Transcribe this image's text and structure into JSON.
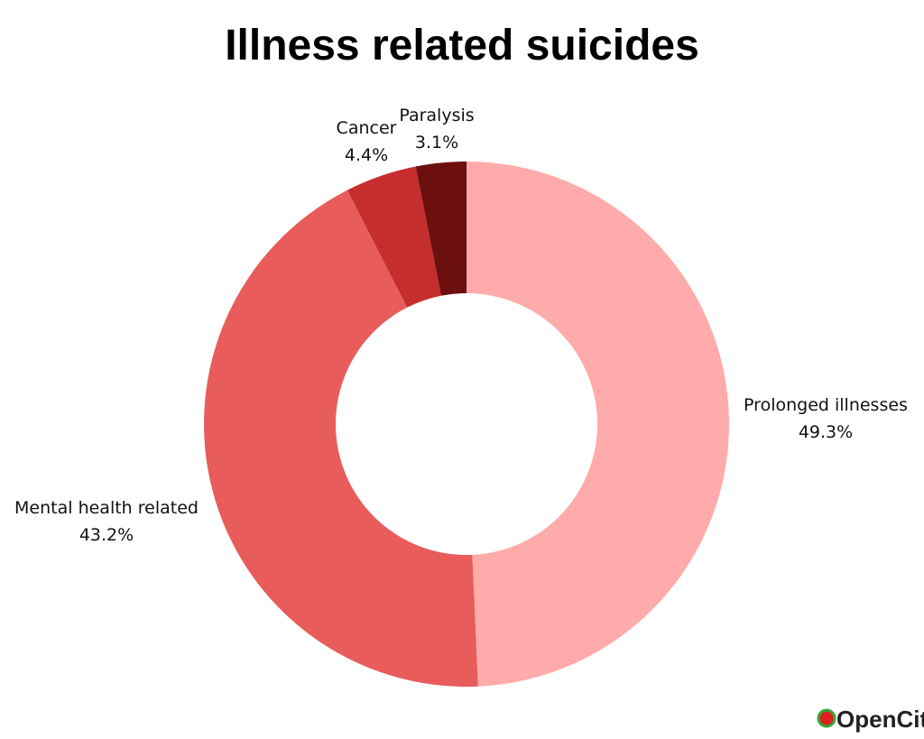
{
  "chart_data": {
    "type": "donut",
    "title": "Illness related suicides",
    "categories": [
      "Prolonged illnesses",
      "Mental health related",
      "Cancer",
      "Paralysis"
    ],
    "values": [
      49.3,
      43.2,
      4.4,
      3.1
    ],
    "value_labels": [
      "49.3%",
      "43.2%",
      "4.4%",
      "3.1%"
    ],
    "colors": [
      "#ffabab",
      "#e85c5c",
      "#c62e2e",
      "#6b0f0f"
    ]
  },
  "logo": "OpenCity"
}
